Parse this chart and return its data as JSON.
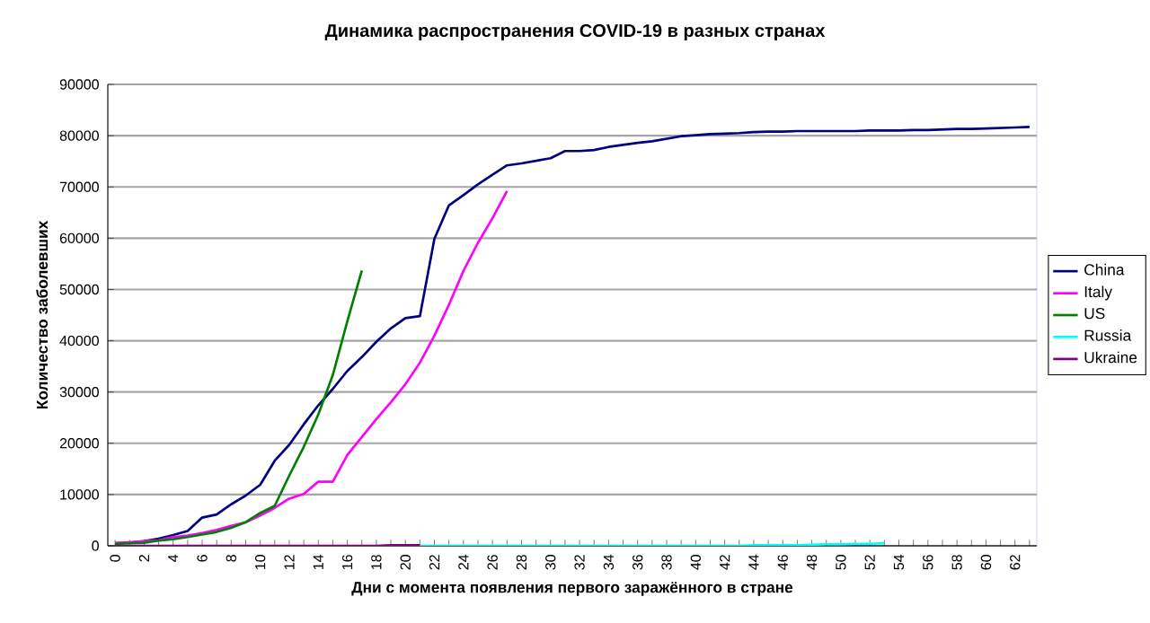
{
  "chart_data": {
    "type": "line",
    "title": "Динамика распространения COVID-19 в разных странах",
    "xlabel": "Дни с момента появления первого заражённого в стране",
    "ylabel": "Количество заболевших",
    "xlim": [
      -0.5,
      63.5
    ],
    "xticks": [
      0,
      {
        "value": 1,
        "label": null
      },
      2,
      {
        "value": 3,
        "label": null
      },
      4,
      {
        "value": 5,
        "label": null
      },
      6,
      {
        "value": 7,
        "label": null
      },
      8,
      {
        "value": 9,
        "label": null
      },
      10,
      {
        "value": 11,
        "label": null
      },
      12,
      {
        "value": 13,
        "label": null
      },
      14,
      {
        "value": 15,
        "label": null
      },
      16,
      {
        "value": 17,
        "label": null
      },
      18,
      {
        "value": 19,
        "label": null
      },
      20,
      {
        "value": 21,
        "label": null
      },
      22,
      {
        "value": 23,
        "label": null
      },
      24,
      {
        "value": 25,
        "label": null
      },
      26,
      {
        "value": 27,
        "label": null
      },
      28,
      {
        "value": 29,
        "label": null
      },
      30,
      {
        "value": 31,
        "label": null
      },
      32,
      {
        "value": 33,
        "label": null
      },
      34,
      {
        "value": 35,
        "label": null
      },
      36,
      {
        "value": 37,
        "label": null
      },
      38,
      {
        "value": 39,
        "label": null
      },
      40,
      {
        "value": 41,
        "label": null
      },
      42,
      {
        "value": 43,
        "label": null
      },
      44,
      {
        "value": 45,
        "label": null
      },
      46,
      {
        "value": 47,
        "label": null
      },
      48,
      {
        "value": 49,
        "label": null
      },
      50,
      {
        "value": 51,
        "label": null
      },
      52,
      {
        "value": 53,
        "label": null
      },
      54,
      {
        "value": 55,
        "label": null
      },
      56,
      {
        "value": 57,
        "label": null
      },
      58,
      {
        "value": 59,
        "label": null
      },
      60,
      {
        "value": 61,
        "label": null
      },
      62,
      {
        "value": 63,
        "label": null
      }
    ],
    "ylim": [
      0,
      90000
    ],
    "yticks": [
      0,
      10000,
      20000,
      30000,
      40000,
      50000,
      60000,
      70000,
      80000,
      90000
    ],
    "grid": "y",
    "legend": "right",
    "line_style": "solid",
    "series": [
      {
        "name": "China",
        "color": "#000080",
        "x": [
          0,
          1,
          2,
          3,
          4,
          5,
          6,
          7,
          8,
          9,
          10,
          11,
          12,
          13,
          14,
          15,
          16,
          17,
          18,
          19,
          20,
          21,
          22,
          23,
          24,
          25,
          26,
          27,
          28,
          29,
          30,
          31,
          32,
          33,
          34,
          35,
          36,
          37,
          38,
          39,
          40,
          41,
          42,
          43,
          44,
          45,
          46,
          47,
          48,
          49,
          50,
          51,
          52,
          53,
          54,
          55,
          56,
          57,
          58,
          59,
          60,
          61,
          62,
          63
        ],
        "values": [
          500,
          600,
          900,
          1400,
          2100,
          2900,
          5500,
          6100,
          8100,
          9800,
          11900,
          16600,
          19700,
          23700,
          27400,
          30600,
          34100,
          36800,
          39800,
          42400,
          44400,
          44800,
          59900,
          66400,
          68400,
          70500,
          72400,
          74200,
          74600,
          75100,
          75600,
          77000,
          77000,
          77200,
          77800,
          78200,
          78600,
          78900,
          79400,
          79900,
          80100,
          80300,
          80400,
          80500,
          80700,
          80800,
          80800,
          80900,
          80900,
          80900,
          80900,
          80900,
          81000,
          81000,
          81000,
          81100,
          81100,
          81200,
          81300,
          81300,
          81400,
          81500,
          81600,
          81700
        ]
      },
      {
        "name": "Italy",
        "color": "#ff00ff",
        "x": [
          0,
          1,
          2,
          3,
          4,
          5,
          6,
          7,
          8,
          9,
          10,
          11,
          12,
          13,
          14,
          15,
          16,
          17,
          18,
          19,
          20,
          21,
          22,
          23,
          24,
          25,
          26,
          27
        ],
        "values": [
          500,
          700,
          900,
          1100,
          1700,
          2000,
          2500,
          3100,
          3900,
          4600,
          5900,
          7400,
          9200,
          10100,
          12500,
          12500,
          17700,
          21200,
          24700,
          28000,
          31500,
          35700,
          41000,
          47000,
          53600,
          59100,
          63900,
          69200
        ]
      },
      {
        "name": "US",
        "color": "#008000",
        "x": [
          0,
          1,
          2,
          3,
          4,
          5,
          6,
          7,
          8,
          9,
          10,
          11,
          12,
          13,
          14,
          15,
          16,
          17
        ],
        "values": [
          400,
          500,
          600,
          1000,
          1300,
          1700,
          2200,
          2700,
          3500,
          4600,
          6400,
          7800,
          13700,
          19300,
          25600,
          33300,
          43800,
          53700
        ]
      },
      {
        "name": "Russia",
        "color": "#00ffff",
        "x": [
          20,
          21,
          22,
          23,
          24,
          25,
          26,
          27,
          28,
          29,
          30,
          31,
          32,
          33,
          34,
          35,
          36,
          37,
          38,
          39,
          40,
          41,
          42,
          43,
          44,
          45,
          46,
          47,
          48,
          49,
          50,
          51,
          52,
          53
        ],
        "values": [
          0,
          0,
          0,
          0,
          0,
          0,
          0,
          0,
          0,
          0,
          0,
          0,
          0,
          0,
          0,
          0,
          0,
          0,
          0,
          0,
          0,
          0,
          0,
          0,
          100,
          100,
          100,
          100,
          200,
          300,
          300,
          400,
          400,
          500
        ]
      },
      {
        "name": "Ukraine",
        "color": "#800080",
        "x": [
          0,
          1,
          2,
          3,
          4,
          5,
          6,
          7,
          8,
          9,
          10,
          11,
          12,
          13,
          14,
          15,
          16,
          17,
          18,
          19,
          20,
          21
        ],
        "values": [
          0,
          0,
          0,
          0,
          0,
          0,
          0,
          0,
          0,
          0,
          0,
          0,
          0,
          0,
          0,
          0,
          0,
          0,
          0,
          100,
          100,
          100
        ]
      }
    ]
  }
}
